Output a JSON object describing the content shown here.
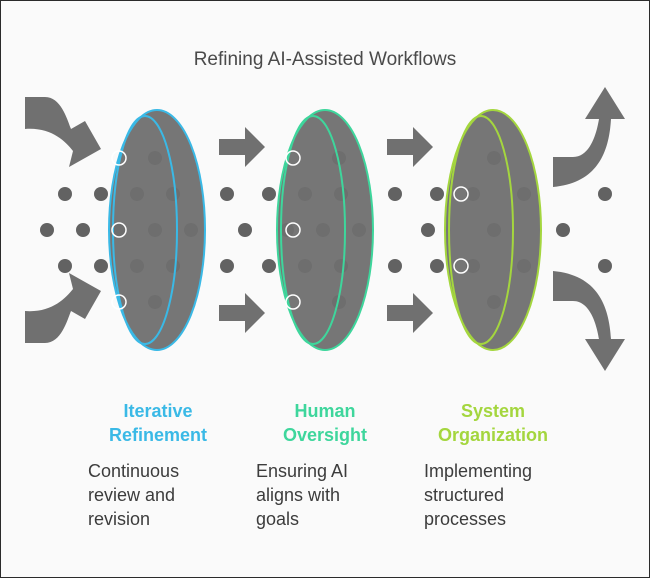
{
  "title": "Refining AI-Assisted Workflows",
  "colors": {
    "arrow": "#707070",
    "dot": "#626262",
    "ring_fill": "#6f6f6f",
    "stage1": "#3ab9e6",
    "stage2": "#3ed69c",
    "stage3": "#a4d63e"
  },
  "stages": [
    {
      "heading": [
        "Iterative",
        "Refinement"
      ],
      "description": [
        "Continuous",
        "review and",
        "revision"
      ],
      "color": "#3ab9e6"
    },
    {
      "heading": [
        "Human",
        "Oversight"
      ],
      "description": [
        "Ensuring AI",
        "aligns with",
        "goals"
      ],
      "color": "#3ed69c"
    },
    {
      "heading": [
        "System",
        "Organization"
      ],
      "description": [
        "Implementing",
        "structured",
        "processes"
      ],
      "color": "#a4d63e"
    }
  ],
  "icons": [
    "curved-arrow-icon",
    "right-arrow-icon",
    "lens-ring-icon"
  ]
}
